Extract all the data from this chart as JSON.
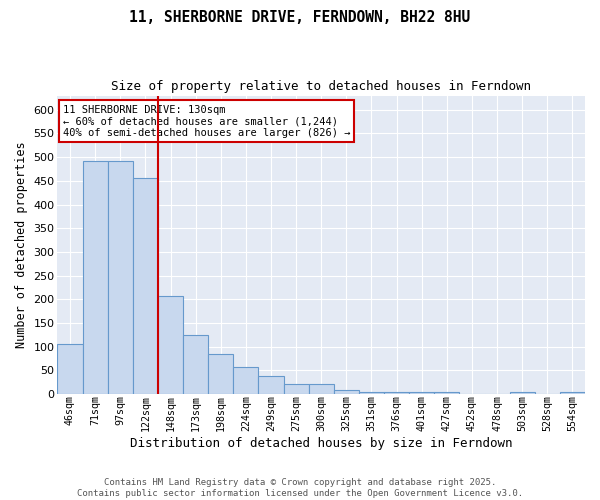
{
  "title": "11, SHERBORNE DRIVE, FERNDOWN, BH22 8HU",
  "subtitle": "Size of property relative to detached houses in Ferndown",
  "xlabel": "Distribution of detached houses by size in Ferndown",
  "ylabel": "Number of detached properties",
  "bar_color": "#c8d8ee",
  "bar_edge_color": "#6699cc",
  "background_color": "#e4eaf4",
  "grid_color": "#ffffff",
  "categories": [
    "46sqm",
    "71sqm",
    "97sqm",
    "122sqm",
    "148sqm",
    "173sqm",
    "198sqm",
    "224sqm",
    "249sqm",
    "275sqm",
    "300sqm",
    "325sqm",
    "351sqm",
    "376sqm",
    "401sqm",
    "427sqm",
    "452sqm",
    "478sqm",
    "503sqm",
    "528sqm",
    "554sqm"
  ],
  "values": [
    106,
    492,
    492,
    457,
    207,
    124,
    84,
    57,
    38,
    22,
    22,
    8,
    5,
    5,
    5,
    5,
    0,
    0,
    5,
    0,
    5
  ],
  "ylim": [
    0,
    630
  ],
  "yticks": [
    0,
    50,
    100,
    150,
    200,
    250,
    300,
    350,
    400,
    450,
    500,
    550,
    600
  ],
  "property_line_color": "#cc0000",
  "annotation_text": "11 SHERBORNE DRIVE: 130sqm\n← 60% of detached houses are smaller (1,244)\n40% of semi-detached houses are larger (826) →",
  "annotation_box_color": "#ffffff",
  "annotation_box_edge_color": "#cc0000",
  "footer_line1": "Contains HM Land Registry data © Crown copyright and database right 2025.",
  "footer_line2": "Contains public sector information licensed under the Open Government Licence v3.0."
}
